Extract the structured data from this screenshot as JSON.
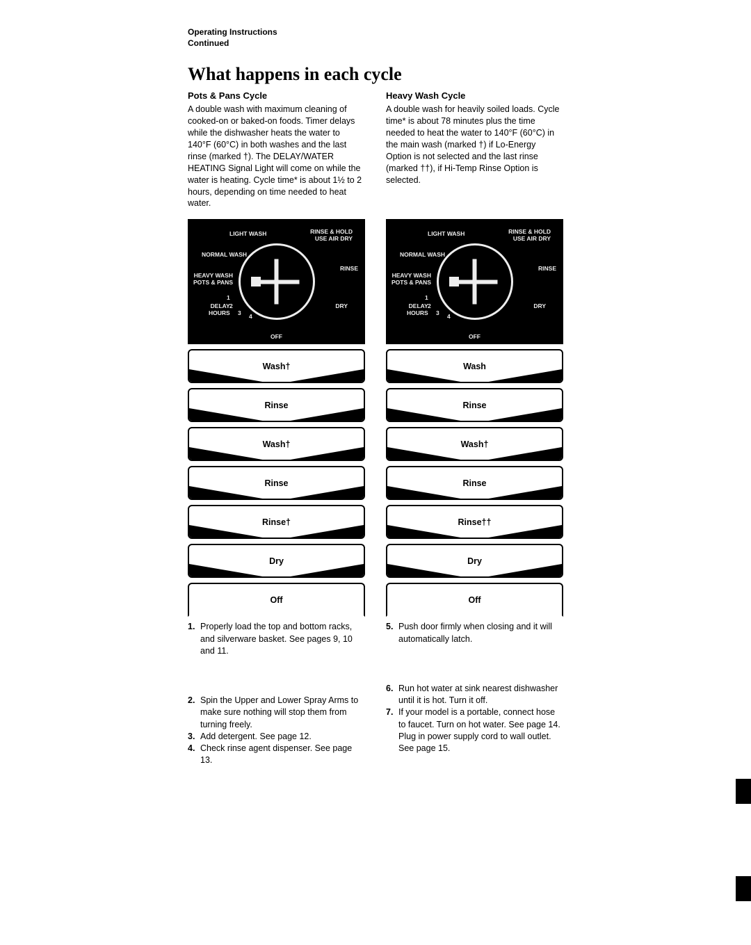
{
  "header": {
    "line1": "Operating Instructions",
    "line2": "Continued"
  },
  "title": "What happens in each cycle",
  "left": {
    "heading": "Pots & Pans Cycle",
    "para": "A double wash with maximum cleaning of cooked-on or baked-on foods. Timer delays while the dishwasher heats the water to 140°F (60°C) in both washes and the last rinse (marked †). The DELAY/WATER HEATING Signal Light will come on while the water is heating. Cycle time* is about 1½ to 2 hours, depending on time needed to heat water."
  },
  "right": {
    "heading": "Heavy Wash Cycle",
    "para": "A double wash for heavily soiled loads. Cycle time* is about 78 minutes plus the time needed to heat the water to 140°F (60°C) in the main wash (marked †) if Lo-Energy Option is not selected and the last rinse (marked ††), if Hi-Temp Rinse Option is selected."
  },
  "dial_labels": {
    "light_wash": "LIGHT WASH",
    "normal_wash": "NORMAL WASH",
    "heavy_wash": "HEAVY WASH\nPOTS & PANS",
    "delay_hours": "DELAY\nHOURS",
    "off": "OFF",
    "dry": "DRY",
    "rinse": "RINSE",
    "rinse_hold": "RINSE & HOLD\nUSE AIR DRY",
    "n1": "1",
    "n2": "2",
    "n3": "3",
    "n4": "4"
  },
  "stages_left": [
    "Wash†",
    "Rinse",
    "Wash†",
    "Rinse",
    "Rinse†",
    "Dry",
    "Off"
  ],
  "stages_right": [
    "Wash",
    "Rinse",
    "Wash†",
    "Rinse",
    "Rinse††",
    "Dry",
    "Off"
  ],
  "steps_left": [
    {
      "n": "1.",
      "t": "Properly load the top and bottom racks, and silverware basket. See pages 9, 10 and 11."
    },
    {
      "n": "2.",
      "t": "Spin the Upper and Lower Spray Arms to make sure nothing will stop them from turning freely."
    },
    {
      "n": "3.",
      "t": "Add detergent. See page 12."
    },
    {
      "n": "4.",
      "t": "Check rinse agent dispenser. See page 13."
    }
  ],
  "steps_right": [
    {
      "n": "5.",
      "t": "Push door firmly when closing and it will automatically latch."
    },
    {
      "n": "6.",
      "t": "Run hot water at sink nearest dishwasher until it is hot. Turn it off."
    },
    {
      "n": "7.",
      "t": "If your model is a portable, connect hose to faucet. Turn on hot water. See page 14. Plug in power supply cord to wall outlet. See page 15."
    }
  ],
  "style": {
    "page_bg": "#ffffff",
    "dial_bg": "#000000",
    "dial_fg": "#ededed",
    "stage_border": "#000000",
    "body_fontsize": 12.5,
    "title_fontsize": 26
  }
}
